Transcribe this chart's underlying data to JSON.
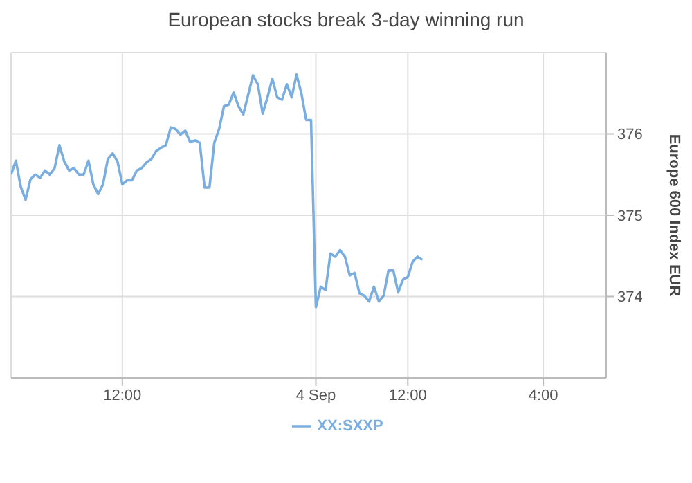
{
  "chart_data": {
    "type": "line",
    "title": "European stocks break 3-day winning run",
    "ylabel": "Europe 600 Index EUR",
    "categories": [
      null,
      null,
      null,
      null,
      null,
      null,
      null,
      null,
      null,
      null,
      null,
      null,
      null,
      null,
      null,
      null,
      null,
      null,
      null,
      null,
      null,
      null,
      null,
      "12:00",
      null,
      null,
      null,
      null,
      null,
      null,
      null,
      null,
      null,
      null,
      null,
      null,
      null,
      null,
      null,
      null,
      null,
      null,
      null,
      null,
      null,
      null,
      null,
      null,
      null,
      null,
      null,
      null,
      null,
      null,
      null,
      null,
      null,
      null,
      null,
      null,
      null,
      null,
      null,
      "4 Sep",
      null,
      null,
      null,
      null,
      null,
      null,
      null,
      null,
      null,
      null,
      null,
      null,
      null,
      null,
      null,
      null,
      null,
      null,
      "12:00",
      null,
      null,
      null,
      null,
      null,
      null,
      null,
      null,
      null,
      null,
      null,
      null,
      null,
      null,
      null,
      null,
      null,
      null,
      null,
      null,
      null,
      null,
      null,
      null,
      null,
      null,
      null,
      "4:00",
      null,
      null,
      null,
      null,
      null,
      null,
      null,
      null,
      null,
      null,
      null,
      null,
      null
    ],
    "series": [
      {
        "name": "XX:SXXP",
        "color": "#7aaee0",
        "values": [
          375.5,
          375.67,
          375.35,
          375.19,
          375.44,
          375.5,
          375.46,
          375.55,
          375.5,
          375.58,
          375.86,
          375.66,
          375.55,
          375.58,
          375.5,
          375.5,
          375.67,
          375.38,
          375.26,
          375.38,
          375.69,
          375.76,
          375.66,
          375.38,
          375.43,
          375.43,
          375.55,
          375.58,
          375.65,
          375.69,
          375.79,
          375.83,
          375.86,
          376.08,
          376.06,
          375.99,
          376.04,
          375.9,
          375.92,
          375.89,
          375.34,
          375.34,
          375.89,
          376.06,
          376.34,
          376.36,
          376.51,
          376.34,
          376.24,
          376.48,
          376.72,
          376.61,
          376.25,
          376.45,
          376.68,
          376.45,
          376.42,
          376.61,
          376.45,
          376.73,
          376.5,
          376.17,
          376.17,
          373.87,
          374.12,
          374.08,
          374.53,
          374.49,
          374.57,
          374.49,
          374.26,
          374.29,
          374.04,
          374.01,
          373.94,
          374.12,
          373.94,
          374.01,
          374.32,
          374.32,
          374.05,
          374.21,
          374.24,
          374.43,
          374.49,
          374.45,
          null,
          null,
          null,
          null,
          null,
          null,
          null,
          null,
          null,
          null,
          null,
          null,
          null,
          null,
          null,
          null,
          null,
          null,
          null,
          null,
          null,
          null,
          null,
          null,
          null,
          null,
          null,
          null,
          null,
          null,
          null,
          null,
          null,
          null,
          null,
          null,
          null,
          null
        ]
      }
    ],
    "ylim": [
      373,
      377
    ],
    "yticks": [
      374,
      375,
      376
    ],
    "grid": true,
    "legend": "bottom",
    "marker": "none",
    "line_style": "solid"
  }
}
